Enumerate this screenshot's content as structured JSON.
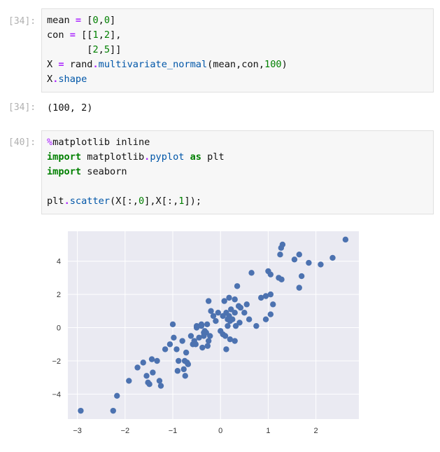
{
  "cells": [
    {
      "prompt_label": "[34]:",
      "code_lines": [
        [
          {
            "t": "mean ",
            "c": ""
          },
          {
            "t": "=",
            "c": "op"
          },
          {
            "t": " [",
            "c": ""
          },
          {
            "t": "0",
            "c": "num"
          },
          {
            "t": ",",
            "c": ""
          },
          {
            "t": "0",
            "c": "num"
          },
          {
            "t": "]",
            "c": ""
          }
        ],
        [
          {
            "t": "con ",
            "c": ""
          },
          {
            "t": "=",
            "c": "op"
          },
          {
            "t": " [[",
            "c": ""
          },
          {
            "t": "1",
            "c": "num"
          },
          {
            "t": ",",
            "c": ""
          },
          {
            "t": "2",
            "c": "num"
          },
          {
            "t": "],",
            "c": ""
          }
        ],
        [
          {
            "t": "       [",
            "c": ""
          },
          {
            "t": "2",
            "c": "num"
          },
          {
            "t": ",",
            "c": ""
          },
          {
            "t": "5",
            "c": "num"
          },
          {
            "t": "]]",
            "c": ""
          }
        ],
        [
          {
            "t": "X ",
            "c": ""
          },
          {
            "t": "=",
            "c": "op"
          },
          {
            "t": " rand",
            "c": ""
          },
          {
            "t": ".",
            "c": "op"
          },
          {
            "t": "multivariate_normal",
            "c": "attr"
          },
          {
            "t": "(mean,con,",
            "c": ""
          },
          {
            "t": "100",
            "c": "num"
          },
          {
            "t": ")",
            "c": ""
          }
        ],
        [
          {
            "t": "X",
            "c": ""
          },
          {
            "t": ".",
            "c": "op"
          },
          {
            "t": "shape",
            "c": "attr"
          }
        ]
      ]
    },
    {
      "prompt_label": "[40]:",
      "code_lines": [
        [
          {
            "t": "%",
            "c": "magic"
          },
          {
            "t": "matplotlib inline",
            "c": ""
          }
        ],
        [
          {
            "t": "import",
            "c": "kw"
          },
          {
            "t": " matplotlib",
            "c": ""
          },
          {
            "t": ".",
            "c": "op"
          },
          {
            "t": "pyplot",
            "c": "attr"
          },
          {
            "t": " ",
            "c": ""
          },
          {
            "t": "as",
            "c": "kw"
          },
          {
            "t": " plt",
            "c": ""
          }
        ],
        [
          {
            "t": "import",
            "c": "kw"
          },
          {
            "t": " seaborn",
            "c": ""
          }
        ],
        [
          {
            "t": "",
            "c": ""
          }
        ],
        [
          {
            "t": "plt",
            "c": ""
          },
          {
            "t": ".",
            "c": "op"
          },
          {
            "t": "scatter",
            "c": "attr"
          },
          {
            "t": "(X[:,",
            "c": ""
          },
          {
            "t": "0",
            "c": "num"
          },
          {
            "t": "],X[:,",
            "c": ""
          },
          {
            "t": "1",
            "c": "num"
          },
          {
            "t": "]);",
            "c": ""
          }
        ]
      ]
    }
  ],
  "output": {
    "prompt_label": "[34]:",
    "text": "(100, 2)"
  },
  "chart_data": {
    "type": "scatter",
    "title": "",
    "xlabel": "",
    "ylabel": "",
    "xlim": [
      -3.2,
      2.9
    ],
    "ylim": [
      -5.5,
      5.8
    ],
    "x_ticks": [
      -3,
      -2,
      -1,
      0,
      1,
      2
    ],
    "y_ticks": [
      -4,
      -2,
      0,
      2,
      4
    ],
    "x_tick_labels": [
      "−3",
      "−2",
      "−1",
      "0",
      "1",
      "2"
    ],
    "y_tick_labels": [
      "−4",
      "−2",
      "0",
      "2",
      "4"
    ],
    "grid": true,
    "background_color": "#eaeaf2",
    "marker_color": "#4c72b0",
    "series": [
      {
        "x": [
          -2.93,
          -2.25,
          -2.17,
          -1.92,
          -1.74,
          -1.62,
          -1.55,
          -1.52,
          -1.49,
          -1.44,
          -1.42,
          -1.33,
          -1.28,
          -1.25,
          -1.16,
          -1.06,
          -0.98,
          -0.92,
          -0.9,
          -0.88,
          -0.8,
          -0.77,
          -0.74,
          -0.72,
          -0.7,
          -0.68,
          -0.62,
          -0.58,
          -0.55,
          -0.52,
          -0.5,
          -0.45,
          -0.4,
          -0.38,
          -0.35,
          -0.33,
          -0.3,
          -0.28,
          -0.27,
          -0.25,
          -0.22,
          -0.2,
          -0.1,
          -0.05,
          0.0,
          0.05,
          0.08,
          0.12,
          0.15,
          0.18,
          0.2,
          0.25,
          0.3,
          0.35,
          0.42,
          0.5,
          0.6,
          0.65,
          0.1,
          0.2,
          0.3,
          0.4,
          0.22,
          0.18,
          0.32,
          0.12,
          0.55,
          0.75,
          0.85,
          0.95,
          1.05,
          1.1,
          1.22,
          1.25,
          1.27,
          1.3,
          1.55,
          1.65,
          1.65,
          1.85,
          2.1,
          2.35,
          2.62,
          1.0,
          1.05,
          1.28,
          1.05,
          0.95,
          1.7,
          -0.35,
          -0.4,
          -1.0,
          -0.75,
          -0.25,
          0.05,
          0.15,
          -0.15,
          0.3,
          0.38,
          -0.5
        ],
        "y": [
          -5.0,
          -5.0,
          -4.1,
          -3.2,
          -2.4,
          -2.1,
          -2.9,
          -3.3,
          -3.4,
          -1.9,
          -2.7,
          -2.0,
          -3.2,
          -3.5,
          -1.3,
          -1.0,
          -0.6,
          -1.3,
          -2.6,
          -2.0,
          -0.8,
          -2.5,
          -2.9,
          -1.5,
          -2.1,
          -2.2,
          -0.5,
          -1.0,
          -0.8,
          -1.0,
          0.0,
          -0.6,
          0.1,
          -1.2,
          -0.5,
          -0.2,
          -0.3,
          0.2,
          -1.1,
          -0.8,
          -0.5,
          1.0,
          0.4,
          0.9,
          -0.2,
          -0.4,
          1.6,
          -1.3,
          0.1,
          1.8,
          -0.7,
          0.5,
          1.7,
          2.5,
          1.2,
          0.9,
          0.5,
          3.3,
          -0.5,
          0.4,
          -0.8,
          0.3,
          1.1,
          0.7,
          0.1,
          0.9,
          1.4,
          0.1,
          1.8,
          0.5,
          2.0,
          1.4,
          3.0,
          4.4,
          4.8,
          5.0,
          4.1,
          4.4,
          2.4,
          3.9,
          3.8,
          4.2,
          5.3,
          3.4,
          3.2,
          2.9,
          0.8,
          1.9,
          3.1,
          -0.3,
          0.2,
          0.2,
          -2.0,
          1.6,
          0.7,
          0.5,
          0.7,
          0.9,
          1.3,
          0.1
        ]
      }
    ]
  }
}
